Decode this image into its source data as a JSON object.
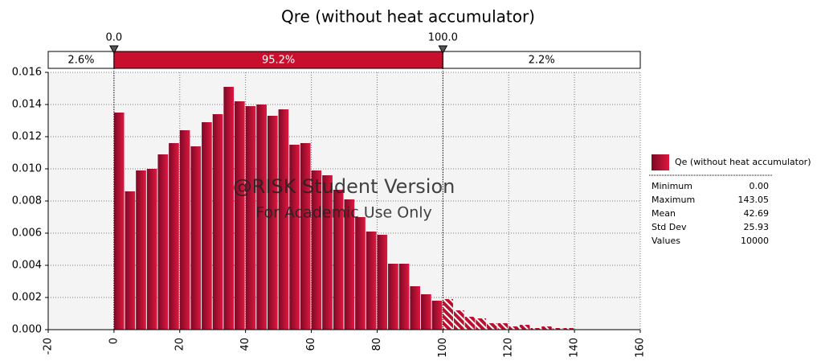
{
  "chart_data": {
    "type": "histogram",
    "title": "Qre (without heat accumulator)",
    "bins": [
      0,
      3.33,
      6.67,
      10,
      13.33,
      16.67,
      20,
      23.33,
      26.67,
      30,
      33.33,
      36.67,
      40,
      43.33,
      46.67,
      50,
      53.33,
      56.67,
      60,
      63.33,
      66.67,
      70,
      73.33,
      76.67,
      80,
      83.33,
      86.67,
      90,
      93.33,
      96.67,
      100,
      103.33,
      106.67,
      110,
      113.33,
      116.67,
      120,
      123.33,
      126.67,
      130,
      133.33,
      136.67,
      140,
      143.33
    ],
    "values": [
      0.0135,
      0.0086,
      0.0099,
      0.01,
      0.0109,
      0.0116,
      0.0124,
      0.0114,
      0.0129,
      0.0134,
      0.0151,
      0.0142,
      0.0139,
      0.014,
      0.0133,
      0.0137,
      0.0115,
      0.0116,
      0.0099,
      0.0096,
      0.0087,
      0.0081,
      0.007,
      0.0061,
      0.0059,
      0.0041,
      0.0041,
      0.0027,
      0.0022,
      0.0018,
      0.0019,
      0.0012,
      0.0008,
      0.0007,
      0.0004,
      0.0004,
      0.0002,
      0.0003,
      0.0001,
      0.0002,
      0.0001,
      0.0001,
      0.0
    ],
    "color": "#c8102e",
    "xlim": [
      -20,
      160
    ],
    "xticks": [
      -20,
      0,
      20,
      40,
      60,
      80,
      100,
      120,
      140,
      160
    ],
    "ylim": [
      0,
      0.016
    ],
    "yticks": [
      {
        "value": 0,
        "label": "0.000"
      },
      {
        "value": 0.002,
        "label": "0.002"
      },
      {
        "value": 0.004,
        "label": "0.004"
      },
      {
        "value": 0.006,
        "label": "0.006"
      },
      {
        "value": 0.008,
        "label": "0.008"
      },
      {
        "value": 0.01,
        "label": "0.010"
      },
      {
        "value": 0.012,
        "label": "0.012"
      },
      {
        "value": 0.014,
        "label": "0.014"
      },
      {
        "value": 0.016,
        "label": "0.016"
      }
    ],
    "grid": true,
    "delimiters": [
      {
        "value": 0,
        "label": "0.0"
      },
      {
        "value": 100,
        "label": "100.0"
      }
    ],
    "region_values": [
      2.6,
      95.2,
      2.2
    ],
    "region_labels": [
      "2.6%",
      "95.2%",
      "2.2%"
    ],
    "legend_name": "Qe (without heat accumulator)",
    "stats": [
      {
        "label": "Minimum",
        "value": 0,
        "value_label": "0.00"
      },
      {
        "label": "Maximum",
        "value": 143.05,
        "value_label": "143.05"
      },
      {
        "label": "Mean",
        "value": 42.69,
        "value_label": "42.69"
      },
      {
        "label": "Std Dev",
        "value": 25.93,
        "value_label": "25.93"
      },
      {
        "label": "Values",
        "value": 10000,
        "value_label": "10000"
      }
    ],
    "watermark": [
      "@RISK Student Version",
      "For Academic Use Only"
    ]
  }
}
